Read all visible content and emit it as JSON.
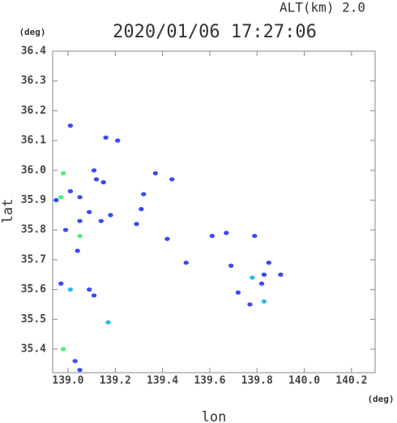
{
  "chart_data": {
    "type": "scatter",
    "title": "2020/01/06 17:27:06",
    "subtitle": "ALT(km)  2.0",
    "x_label": "lon",
    "y_label": "lat",
    "x_unit": "(deg)",
    "y_unit": "(deg)",
    "xlim": [
      138.935,
      140.3
    ],
    "ylim": [
      35.321,
      36.4
    ],
    "xticks": [
      {
        "value": 139,
        "label": "139.0"
      },
      139.2,
      139.4,
      139.6,
      139.8,
      {
        "value": 140,
        "label": "140.0"
      },
      140.2
    ],
    "yticks": [
      35.4,
      35.5,
      35.6,
      35.7,
      35.8,
      35.9,
      {
        "value": 36,
        "label": "36.0"
      },
      36.1,
      36.2,
      36.3,
      36.4
    ],
    "series": [
      {
        "color": "#3a4cf0",
        "x": [
          139.01,
          139.16,
          139.21,
          138.95,
          139.01,
          139.05,
          139.11,
          139.12,
          139.15,
          138.99,
          139.05,
          139.09,
          139.14,
          139.18,
          139.29,
          139.31,
          139.32,
          139.37,
          139.44,
          139.42,
          139.5,
          139.04,
          138.97,
          139.09,
          139.11,
          139.03,
          139.05,
          139.61,
          139.67,
          139.79,
          139.69,
          139.72,
          139.82,
          139.83,
          139.85,
          139.9,
          139.77
        ],
        "y": [
          36.15,
          36.11,
          36.1,
          35.9,
          35.93,
          35.91,
          36.0,
          35.97,
          35.96,
          35.8,
          35.83,
          35.86,
          35.83,
          35.85,
          35.82,
          35.87,
          35.92,
          35.99,
          35.97,
          35.77,
          35.69,
          35.73,
          35.62,
          35.6,
          35.58,
          35.36,
          35.33,
          35.78,
          35.79,
          35.78,
          35.68,
          35.59,
          35.62,
          35.65,
          35.69,
          35.65,
          35.55
        ]
      },
      {
        "color": "#30b8e8",
        "x": [
          139.01,
          139.17,
          139.78,
          139.83
        ],
        "y": [
          35.6,
          35.49,
          35.64,
          35.56
        ]
      },
      {
        "color": "#50f070",
        "x": [
          138.98,
          138.97,
          139.05,
          138.98
        ],
        "y": [
          35.99,
          35.91,
          35.78,
          35.4
        ]
      }
    ]
  }
}
